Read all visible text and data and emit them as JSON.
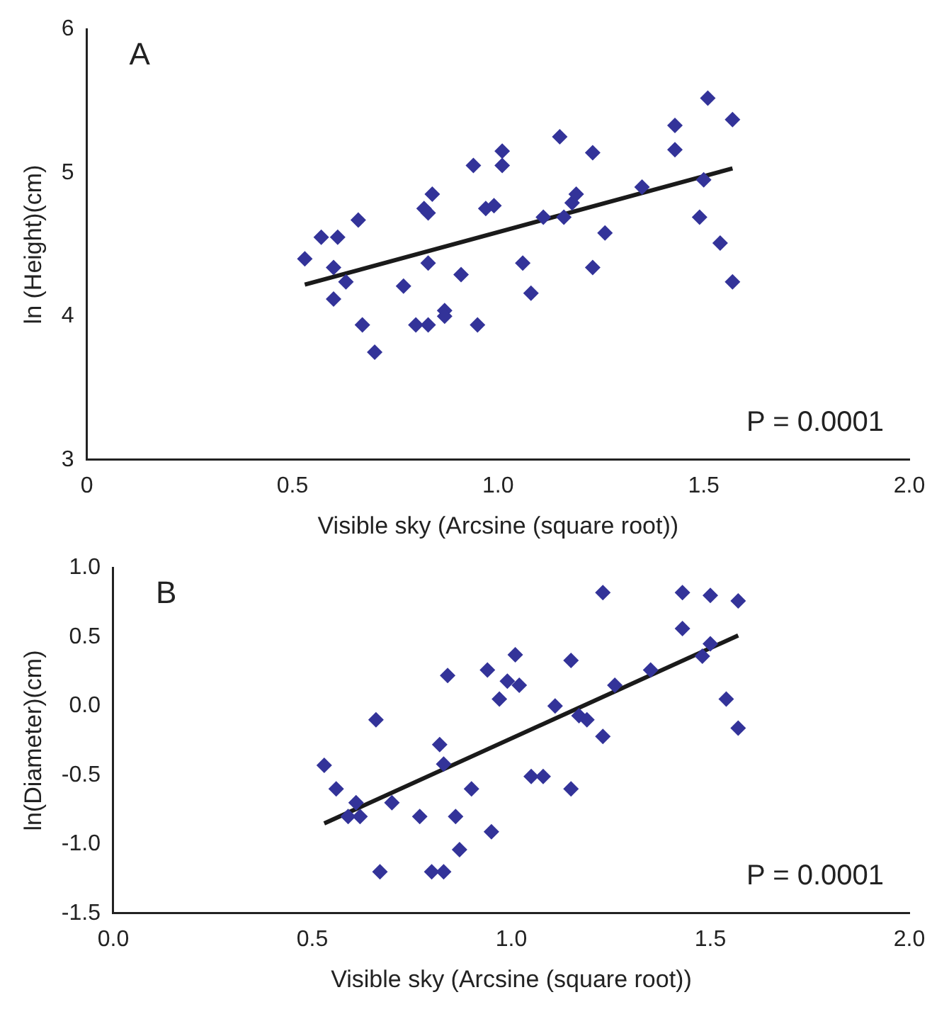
{
  "chart_data": [
    {
      "type": "scatter",
      "title": "A",
      "xlabel": "Visible sky (Arcsine (square root))",
      "ylabel": "ln (Height)(cm)",
      "annotations": [
        "P = 0.0001"
      ],
      "xlim": [
        0,
        2
      ],
      "xticks": [
        0,
        {
          "value": 0.5,
          "label": "0.5"
        },
        {
          "value": 1,
          "label": "1.0"
        },
        {
          "value": 1.5,
          "label": "1.5"
        },
        {
          "value": 2,
          "label": "2.0"
        }
      ],
      "ylim": [
        3,
        6
      ],
      "yticks": [
        3,
        4,
        5,
        6
      ],
      "grid": false,
      "legend": false,
      "marker": "diamond",
      "series": [
        {
          "color": "#333399",
          "x": [
            0.53,
            0.57,
            0.6,
            0.61,
            0.6,
            0.63,
            0.66,
            0.67,
            0.7,
            0.77,
            0.8,
            0.82,
            0.83,
            0.83,
            0.83,
            0.84,
            0.87,
            0.87,
            0.91,
            0.94,
            0.95,
            0.97,
            0.99,
            1.01,
            1.01,
            1.06,
            1.08,
            1.11,
            1.15,
            1.16,
            1.18,
            1.19,
            1.23,
            1.23,
            1.26,
            1.35,
            1.43,
            1.43,
            1.49,
            1.5,
            1.51,
            1.54,
            1.57,
            1.57
          ],
          "values": [
            4.4,
            4.55,
            4.12,
            4.55,
            4.34,
            4.24,
            4.67,
            3.94,
            3.75,
            4.21,
            3.94,
            4.75,
            4.72,
            3.94,
            4.37,
            4.85,
            4.04,
            4.0,
            4.29,
            5.05,
            3.94,
            4.75,
            4.77,
            5.15,
            5.05,
            4.37,
            4.16,
            4.69,
            5.25,
            4.69,
            4.79,
            4.85,
            5.14,
            4.34,
            4.58,
            4.9,
            5.33,
            5.16,
            4.69,
            4.95,
            5.52,
            4.51,
            5.37,
            4.24
          ]
        },
        {
          "type": "line",
          "color": "#1a1a1a",
          "marker": "none",
          "x": [
            0.53,
            1.57
          ],
          "values": [
            4.22,
            5.03
          ]
        }
      ]
    },
    {
      "type": "scatter",
      "title": "B",
      "xlabel": "Visible sky (Arcsine (square root))",
      "ylabel": "ln(Diameter)(cm)",
      "annotations": [
        "P = 0.0001"
      ],
      "xlim": [
        0,
        2
      ],
      "xticks": [
        {
          "value": 0,
          "label": "0.0"
        },
        {
          "value": 0.5,
          "label": "0.5"
        },
        {
          "value": 1,
          "label": "1.0"
        },
        {
          "value": 1.5,
          "label": "1.5"
        },
        {
          "value": 2,
          "label": "2.0"
        }
      ],
      "ylim": [
        -1.5,
        1
      ],
      "yticks": [
        {
          "value": -1.5,
          "label": "-1.5"
        },
        {
          "value": -1,
          "label": "-1.0"
        },
        {
          "value": -0.5,
          "label": "-0.5"
        },
        {
          "value": 0,
          "label": "0.0"
        },
        {
          "value": 0.5,
          "label": "0.5"
        },
        {
          "value": 1,
          "label": "1.0"
        }
      ],
      "grid": false,
      "legend": false,
      "marker": "diamond",
      "series": [
        {
          "color": "#333399",
          "x": [
            0.53,
            0.56,
            0.59,
            0.61,
            0.62,
            0.66,
            0.67,
            0.7,
            0.77,
            0.8,
            0.82,
            0.83,
            0.84,
            0.83,
            0.86,
            0.87,
            0.9,
            0.94,
            0.95,
            0.97,
            0.99,
            1.01,
            1.02,
            1.05,
            1.08,
            1.11,
            1.15,
            1.15,
            1.17,
            1.19,
            1.23,
            1.23,
            1.26,
            1.35,
            1.43,
            1.43,
            1.48,
            1.5,
            1.5,
            1.54,
            1.57,
            1.57
          ],
          "values": [
            -0.43,
            -0.6,
            -0.8,
            -0.7,
            -0.8,
            -0.1,
            -1.2,
            -0.7,
            -0.8,
            -1.2,
            -0.28,
            -0.42,
            0.22,
            -1.2,
            -0.8,
            -1.04,
            -0.6,
            0.26,
            -0.91,
            0.05,
            0.18,
            0.37,
            0.15,
            -0.51,
            -0.51,
            0.0,
            0.33,
            -0.6,
            -0.07,
            -0.1,
            0.82,
            -0.22,
            0.15,
            0.26,
            0.82,
            0.56,
            0.36,
            0.8,
            0.45,
            0.05,
            0.76,
            -0.16
          ]
        },
        {
          "type": "line",
          "color": "#1a1a1a",
          "marker": "none",
          "x": [
            0.53,
            1.57
          ],
          "values": [
            -0.85,
            0.51
          ]
        }
      ]
    }
  ]
}
